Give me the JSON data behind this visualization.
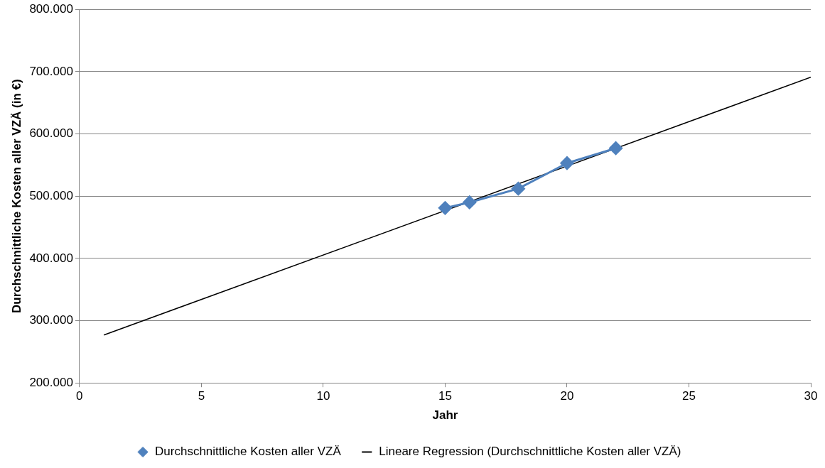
{
  "chart_data": {
    "type": "line",
    "xlabel": "Jahr",
    "ylabel": "Durchschnittliche Kosten aller VZÄ (in €)",
    "xlim": [
      0,
      30
    ],
    "xticks": [
      0,
      5,
      10,
      15,
      20,
      25,
      30
    ],
    "ylim": [
      200000,
      800000
    ],
    "yticks": [
      {
        "value": 200000,
        "label": "200.000"
      },
      {
        "value": 300000,
        "label": "300.000"
      },
      {
        "value": 400000,
        "label": "400.000"
      },
      {
        "value": 500000,
        "label": "500.000"
      },
      {
        "value": 600000,
        "label": "600.000"
      },
      {
        "value": 700000,
        "label": "700.000"
      },
      {
        "value": 800000,
        "label": "800.000"
      }
    ],
    "grid": "y",
    "legend": "bottom",
    "series": [
      {
        "name": "Durchschnittliche Kosten aller VZÄ",
        "color": "#4f81bd",
        "marker": "diamond",
        "x": [
          15,
          16,
          18,
          20,
          22
        ],
        "values": [
          481000,
          490000,
          512000,
          553000,
          577000
        ]
      },
      {
        "name": "Lineare Regression (Durchschnittliche Kosten aller VZÄ)",
        "color": "#000000",
        "marker": "none",
        "x": [
          1,
          30
        ],
        "values": [
          277000,
          691000
        ]
      }
    ]
  }
}
